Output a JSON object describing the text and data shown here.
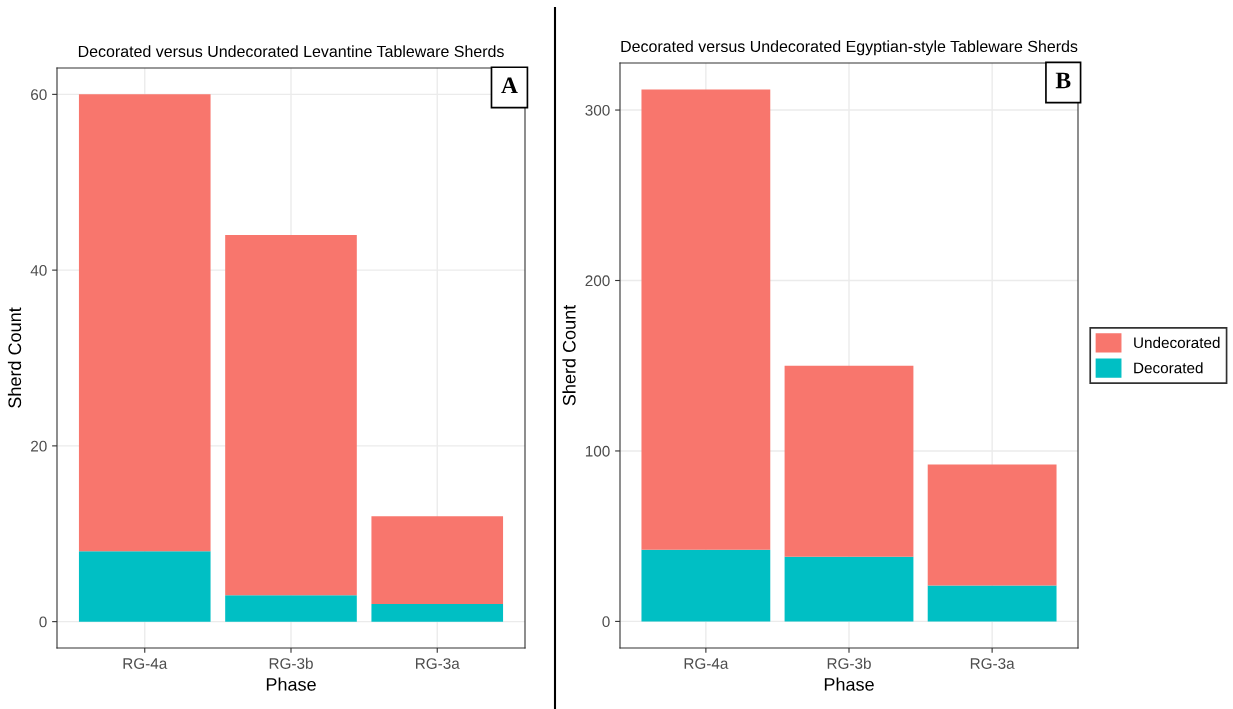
{
  "chart_data": [
    {
      "type": "bar",
      "title": "Decorated versus Undecorated Levantine Tableware Sherds",
      "xlabel": "Phase",
      "ylabel": "Sherd Count",
      "categories": [
        "RG-4a",
        "RG-3b",
        "RG-3a"
      ],
      "stacked": true,
      "series": [
        {
          "color": "#00bfc4",
          "values": [
            8,
            3,
            2
          ]
        },
        {
          "color": "#f8766d",
          "values": [
            52,
            41,
            10
          ]
        }
      ],
      "ylim": [
        -3,
        63
      ],
      "yticks": [
        0,
        20,
        40,
        60
      ],
      "grid": true,
      "annotations": [
        "A"
      ]
    },
    {
      "type": "bar",
      "title": "Decorated versus Undecorated Egyptian-style Tableware Sherds",
      "xlabel": "Phase",
      "ylabel": "Sherd Count",
      "categories": [
        "RG-4a",
        "RG-3b",
        "RG-3a"
      ],
      "stacked": true,
      "series": [
        {
          "name": "Decorated",
          "color": "#00bfc4",
          "values": [
            42,
            38,
            21
          ]
        },
        {
          "name": "Undecorated",
          "color": "#f8766d",
          "values": [
            270,
            112,
            71
          ]
        }
      ],
      "ylim": [
        -15.6,
        327.6
      ],
      "yticks": [
        0,
        100,
        200,
        300
      ],
      "grid": true,
      "legend": "right",
      "annotations": [
        "B"
      ]
    }
  ]
}
